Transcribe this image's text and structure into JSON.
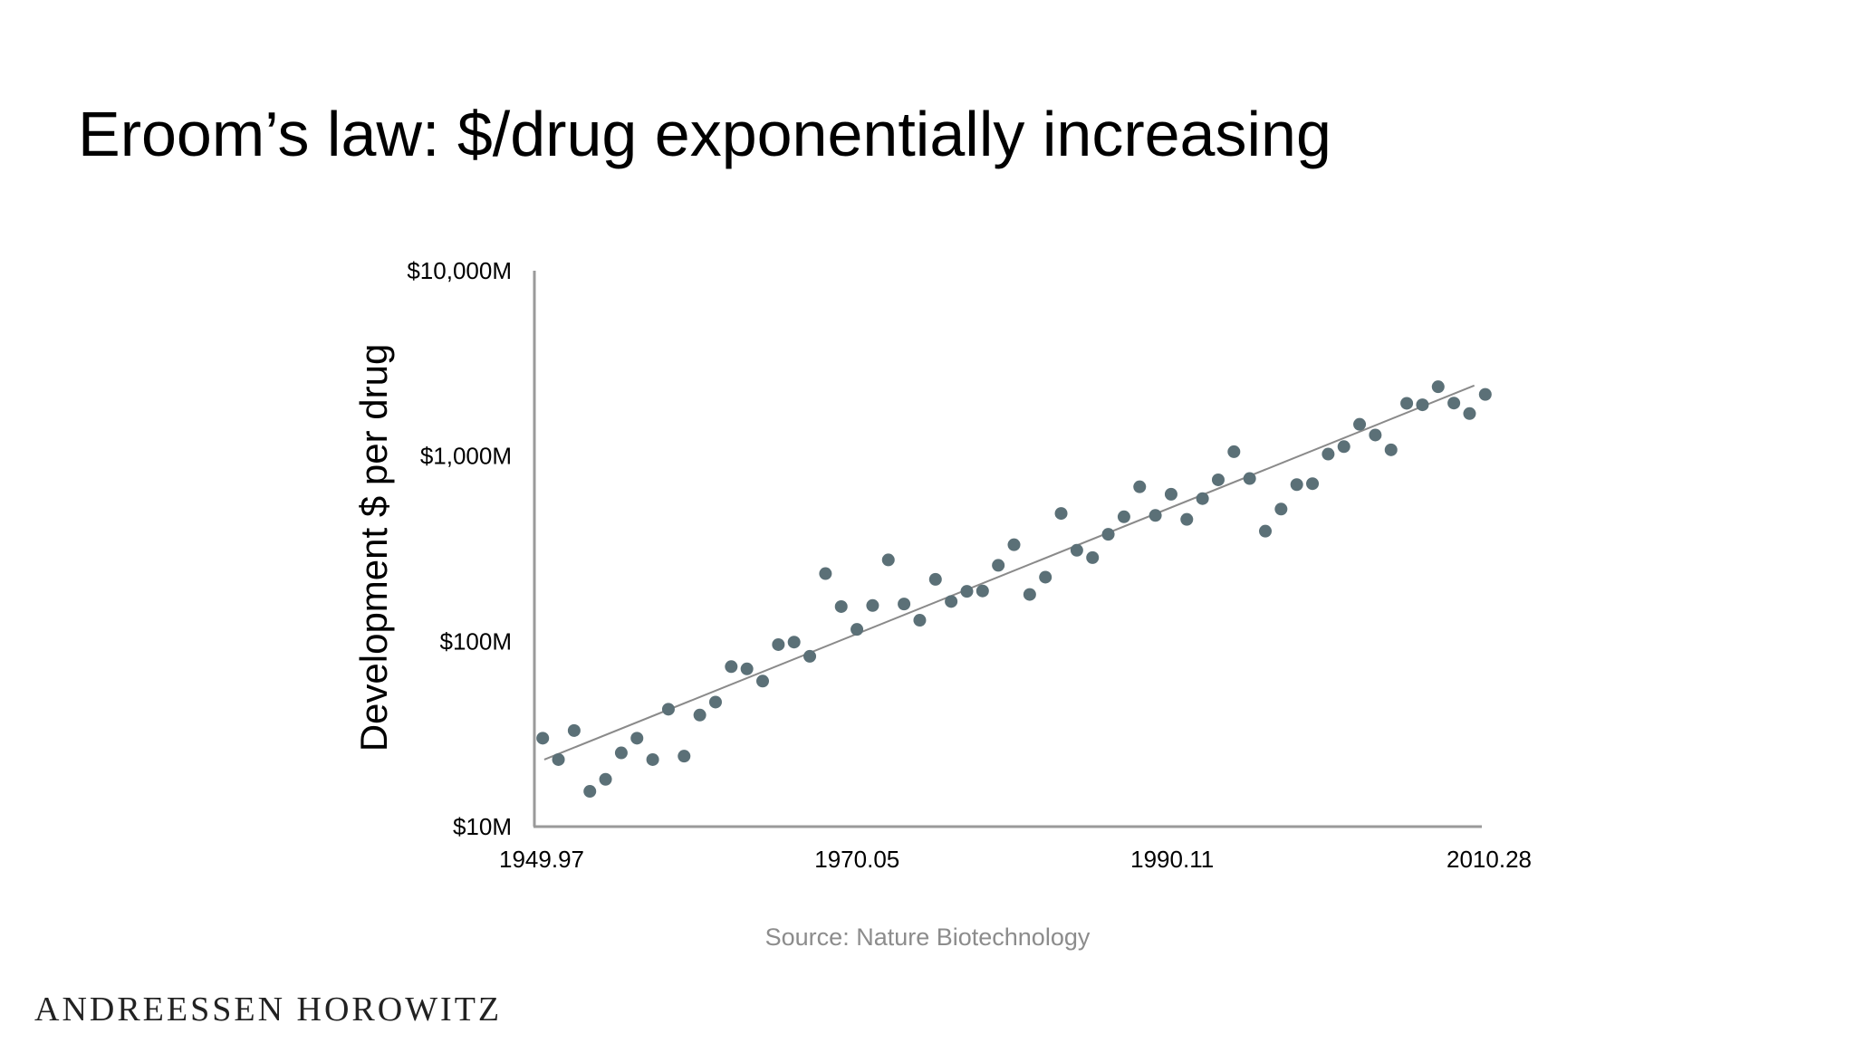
{
  "title": "Eroom’s law: $/drug exponentially increasing",
  "source": "Source: Nature Biotechnology",
  "brand": "ANDREESSEN HOROWITZ",
  "colors": {
    "point": "#5b7077",
    "trend": "#8a8a8a",
    "axis": "#9a9a9a"
  },
  "chart_data": {
    "type": "scatter",
    "title": "",
    "xlabel": "",
    "ylabel": "Development $ per drug",
    "yscale": "log",
    "xlim": [
      1949.97,
      2010.28
    ],
    "ylim": [
      10,
      10000
    ],
    "x_ticks": [
      {
        "value": 1949.97,
        "label": "1949.97"
      },
      {
        "value": 1970.05,
        "label": "1970.05"
      },
      {
        "value": 1990.11,
        "label": "1990.11"
      },
      {
        "value": 2010.28,
        "label": "2010.28"
      }
    ],
    "y_ticks": [
      {
        "value": 10,
        "label": "$10M"
      },
      {
        "value": 100,
        "label": "$100M"
      },
      {
        "value": 1000,
        "label": "$1,000M"
      },
      {
        "value": 10000,
        "label": "$10,000M"
      }
    ],
    "grid": false,
    "trendline": {
      "x": [
        1950.6,
        2009.8
      ],
      "y": [
        23,
        2400
      ]
    },
    "series": [
      {
        "name": "Development $ per drug",
        "x": [
          1950.5,
          1951.5,
          1952.5,
          1953.5,
          1954.5,
          1955.5,
          1956.5,
          1957.5,
          1958.5,
          1959.5,
          1960.5,
          1961.5,
          1962.5,
          1963.5,
          1964.5,
          1965.5,
          1966.5,
          1967.5,
          1968.5,
          1969.5,
          1970.5,
          1971.5,
          1972.5,
          1973.5,
          1974.5,
          1975.5,
          1976.5,
          1977.5,
          1978.5,
          1979.5,
          1980.5,
          1981.5,
          1982.5,
          1983.5,
          1984.5,
          1985.5,
          1986.5,
          1987.5,
          1988.5,
          1989.5,
          1990.5,
          1991.5,
          1992.5,
          1993.5,
          1994.5,
          1995.5,
          1996.5,
          1997.5,
          1998.5,
          1999.5,
          2000.5,
          2001.5,
          2002.5,
          2003.5,
          2004.5,
          2005.5,
          2006.5,
          2007.5,
          2008.5,
          2009.5,
          2010.5
        ],
        "y": [
          30,
          23,
          33,
          15.5,
          18,
          25,
          30,
          23,
          43,
          24,
          40,
          47,
          73,
          71,
          61,
          96,
          99,
          83,
          232,
          154,
          116,
          156,
          275,
          159,
          130,
          216,
          164,
          186,
          187,
          257,
          332,
          179,
          222,
          490,
          310,
          283,
          378,
          470,
          682,
          478,
          622,
          455,
          589,
          744,
          1055,
          756,
          393,
          517,
          701,
          709,
          1024,
          1124,
          1483,
          1298,
          1080,
          1925,
          1890,
          2365,
          1930,
          1695,
          2150
        ]
      }
    ]
  }
}
